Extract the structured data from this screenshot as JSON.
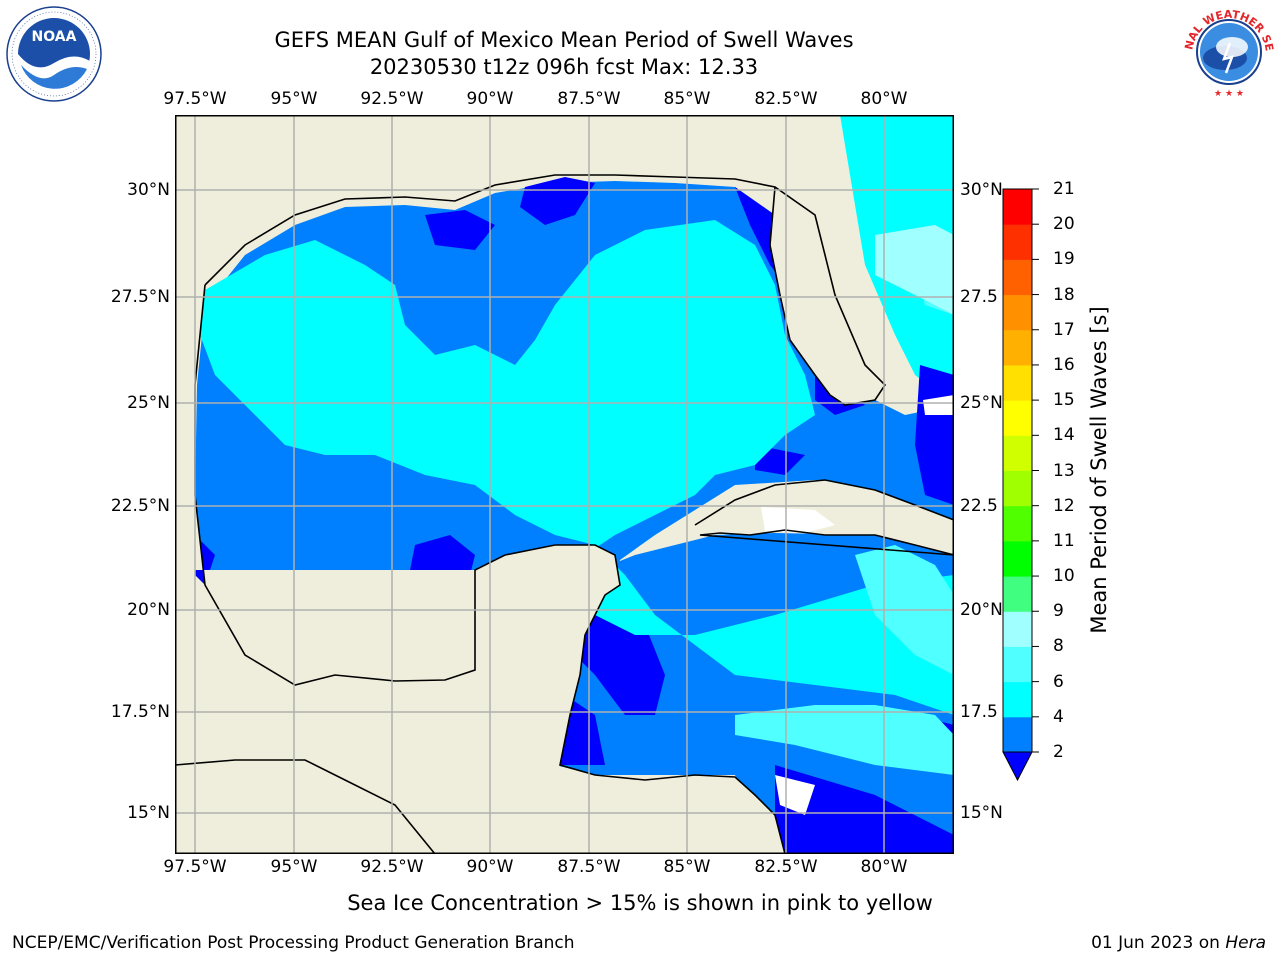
{
  "title": {
    "line1": "GEFS MEAN Gulf of Mexico Mean Period of Swell Waves",
    "line2": "20230530 t12z 096h fcst   Max: 12.33"
  },
  "map": {
    "lon_labels": [
      "97.5°W",
      "95°W",
      "92.5°W",
      "90°W",
      "87.5°W",
      "85°W",
      "82.5°W",
      "80°W"
    ],
    "lat_labels_left": [
      "30°N",
      "27.5°N",
      "25°N",
      "22.5°N",
      "20°N",
      "17.5°N",
      "15°N"
    ],
    "lat_labels_right": [
      "30°N",
      "27.5",
      "25°N",
      "22.5",
      "20°N",
      "17.5",
      "15°N"
    ],
    "colors": {
      "land": "#efeedc",
      "ocean_deep": "#0000ff",
      "ocean_mid": "#0080ff",
      "ocean_cyan": "#00ffff",
      "ocean_light": "#50ffff",
      "ocean_pale": "#a0ffff",
      "green": "#40ff80"
    }
  },
  "colorbar": {
    "label": "Mean Period of Swell Waves [s]",
    "ticks": [
      "2",
      "4",
      "6",
      "8",
      "9",
      "10",
      "11",
      "12",
      "13",
      "14",
      "15",
      "16",
      "17",
      "18",
      "19",
      "20",
      "21"
    ],
    "colors": [
      "#0080ff",
      "#00ffff",
      "#50ffff",
      "#a0ffff",
      "#40ff80",
      "#00ff00",
      "#50ff00",
      "#a0ff00",
      "#d0ff00",
      "#ffff00",
      "#ffe000",
      "#ffb000",
      "#ff9000",
      "#ff6000",
      "#ff3000",
      "#ff0000"
    ],
    "under_color": "#0000ff"
  },
  "note": "Sea Ice Concentration > 15% is shown in pink to yellow",
  "footer": {
    "left": "NCEP/EMC/Verification Post Processing Product Generation Branch",
    "right_prefix": "01 Jun 2023 on",
    "right_host": "Hera"
  },
  "logos": {
    "left": "NOAA",
    "right_text": "NATIONAL WEATHER SERVICE"
  }
}
